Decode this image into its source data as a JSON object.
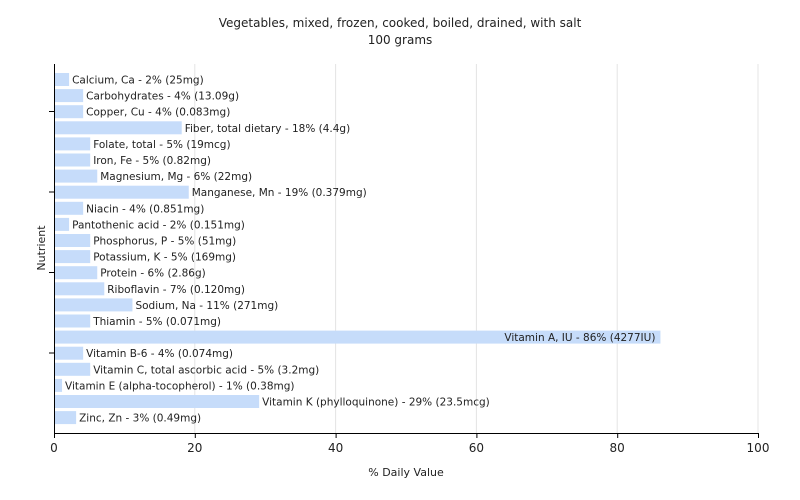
{
  "chart_data": {
    "type": "bar",
    "orientation": "horizontal",
    "title": "Vegetables, mixed, frozen, cooked, boiled, drained, with salt",
    "subtitle": "100 grams",
    "xlabel": "% Daily Value",
    "ylabel": "Nutrient",
    "xlim": [
      0,
      100
    ],
    "xticks": [
      0,
      20,
      40,
      60,
      80,
      100
    ],
    "grid": true,
    "bar_color": "#c6dcfa",
    "categories": [
      "Calcium, Ca",
      "Carbohydrates",
      "Copper, Cu",
      "Fiber, total dietary",
      "Folate, total",
      "Iron, Fe",
      "Magnesium, Mg",
      "Manganese, Mn",
      "Niacin",
      "Pantothenic acid",
      "Phosphorus, P",
      "Potassium, K",
      "Protein",
      "Riboflavin",
      "Sodium, Na",
      "Thiamin",
      "Vitamin A, IU",
      "Vitamin B-6",
      "Vitamin C, total ascorbic acid",
      "Vitamin E (alpha-tocopherol)",
      "Vitamin K (phylloquinone)",
      "Zinc, Zn"
    ],
    "values": [
      2,
      4,
      4,
      18,
      5,
      5,
      6,
      19,
      4,
      2,
      5,
      5,
      6,
      7,
      11,
      5,
      86,
      4,
      5,
      1,
      29,
      3
    ],
    "labels": [
      "Calcium, Ca - 2% (25mg)",
      "Carbohydrates - 4% (13.09g)",
      "Copper, Cu - 4% (0.083mg)",
      "Fiber, total dietary - 18% (4.4g)",
      "Folate, total - 5% (19mcg)",
      "Iron, Fe - 5% (0.82mg)",
      "Magnesium, Mg - 6% (22mg)",
      "Manganese, Mn - 19% (0.379mg)",
      "Niacin - 4% (0.851mg)",
      "Pantothenic acid - 2% (0.151mg)",
      "Phosphorus, P - 5% (51mg)",
      "Potassium, K - 5% (169mg)",
      "Protein - 6% (2.86g)",
      "Riboflavin - 7% (0.120mg)",
      "Sodium, Na - 11% (271mg)",
      "Thiamin - 5% (0.071mg)",
      "Vitamin A, IU - 86% (4277IU)",
      "Vitamin B-6 - 4% (0.074mg)",
      "Vitamin C, total ascorbic acid - 5% (3.2mg)",
      "Vitamin E (alpha-tocopherol) - 1% (0.38mg)",
      "Vitamin K (phylloquinone) - 29% (23.5mcg)",
      "Zinc, Zn - 3% (0.49mg)"
    ]
  }
}
